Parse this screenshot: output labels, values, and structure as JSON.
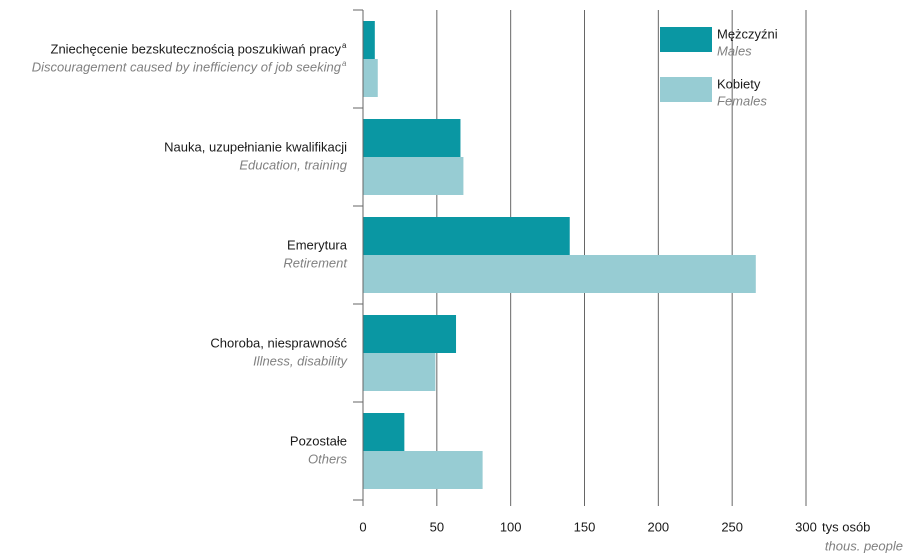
{
  "chart_data": {
    "type": "barh",
    "categories": [
      {
        "label": "Zniechęcenie bezskutecznością poszukiwań pracy",
        "sup": "a",
        "label_en": "Discouragement caused by inefficiency of job seeking",
        "sup_en": "a"
      },
      {
        "label": "Nauka, uzupełnianie kwalifikacji",
        "label_en": "Education, training"
      },
      {
        "label": "Emerytura",
        "label_en": "Retirement"
      },
      {
        "label": "Choroba, niesprawność",
        "label_en": "Illness, disability"
      },
      {
        "label": "Pozostałe",
        "label_en": "Others"
      }
    ],
    "series": [
      {
        "name": "Mężczyźni",
        "name_en": "Males",
        "color": "#0a97a3",
        "values": [
          8,
          66,
          140,
          63,
          28
        ]
      },
      {
        "name": "Kobiety",
        "name_en": "Females",
        "color": "#97ccd3",
        "values": [
          10,
          68,
          266,
          49,
          81
        ]
      }
    ],
    "xlim": [
      0,
      300
    ],
    "xticks": [
      0,
      50,
      100,
      150,
      200,
      250,
      300
    ],
    "xlabel": "tys osób",
    "xlabel_en": "thous. people",
    "grid": true,
    "legend": "top-right"
  }
}
